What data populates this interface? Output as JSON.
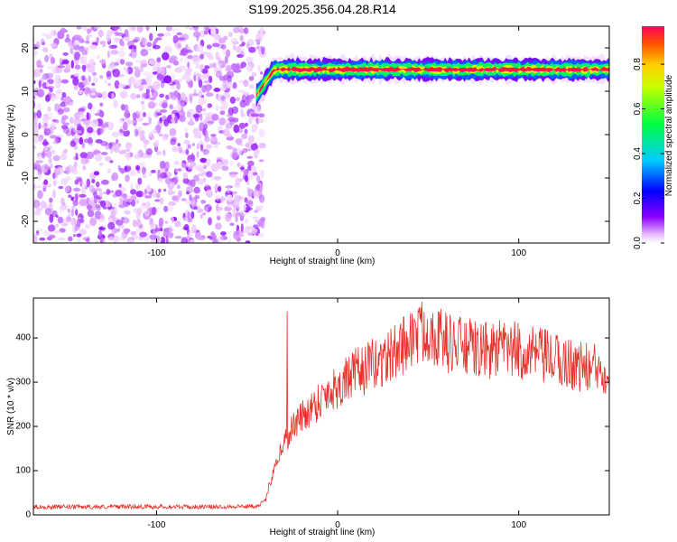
{
  "figure_title": "S199.2025.356.04.28.R14",
  "chart_data": [
    {
      "type": "heatmap",
      "xlabel": "Height of straight line (km)",
      "ylabel": "Frequency (Hz)",
      "xlim": [
        -168,
        150
      ],
      "ylim": [
        -25,
        25
      ],
      "xticks": [
        -100,
        0,
        100
      ],
      "yticks": [
        -20,
        -10,
        0,
        10,
        20
      ],
      "colorbar": {
        "label": "Normalized spectral amplitude",
        "range": [
          0.0,
          0.97
        ],
        "ticks": [
          0.0,
          0.2,
          0.4,
          0.6,
          0.8
        ],
        "tick_labels": [
          "0.0",
          "0.2",
          "0.4",
          "0.6",
          "0.8"
        ],
        "colormap": "rainbow (magenta-blue-cyan-green-yellow-red)"
      },
      "features": {
        "noise_region_x": [
          -168,
          -45
        ],
        "noise_amplitude_range": [
          0.0,
          0.1
        ],
        "signal_band_start_x": -45,
        "signal_band_freq_hz": 15,
        "signal_band_rise_from_hz": 9,
        "signal_band_amplitude_peak": 0.95
      }
    },
    {
      "type": "line",
      "xlabel": "Height of straight line (km)",
      "ylabel": "SNR (10 * v/v)",
      "xlim": [
        -168,
        150
      ],
      "ylim": [
        0,
        490
      ],
      "xticks": [
        -100,
        0,
        100
      ],
      "yticks": [
        0,
        100,
        200,
        300,
        400
      ],
      "series": [
        {
          "color": "#e8302a",
          "x": [
            -168,
            -140,
            -110,
            -80,
            -60,
            -45,
            -40,
            -35,
            -30,
            -25,
            -20,
            -15,
            -10,
            -5,
            0,
            10,
            20,
            30,
            40,
            50,
            60,
            70,
            80,
            90,
            100,
            110,
            120,
            130,
            140,
            150
          ],
          "y": [
            18,
            18,
            19,
            18,
            19,
            20,
            30,
            110,
            160,
            200,
            220,
            240,
            260,
            280,
            290,
            320,
            340,
            360,
            400,
            420,
            390,
            380,
            370,
            375,
            370,
            360,
            350,
            340,
            330,
            330
          ],
          "spikes": [
            {
              "x": -28,
              "y": 460
            }
          ]
        }
      ]
    }
  ]
}
